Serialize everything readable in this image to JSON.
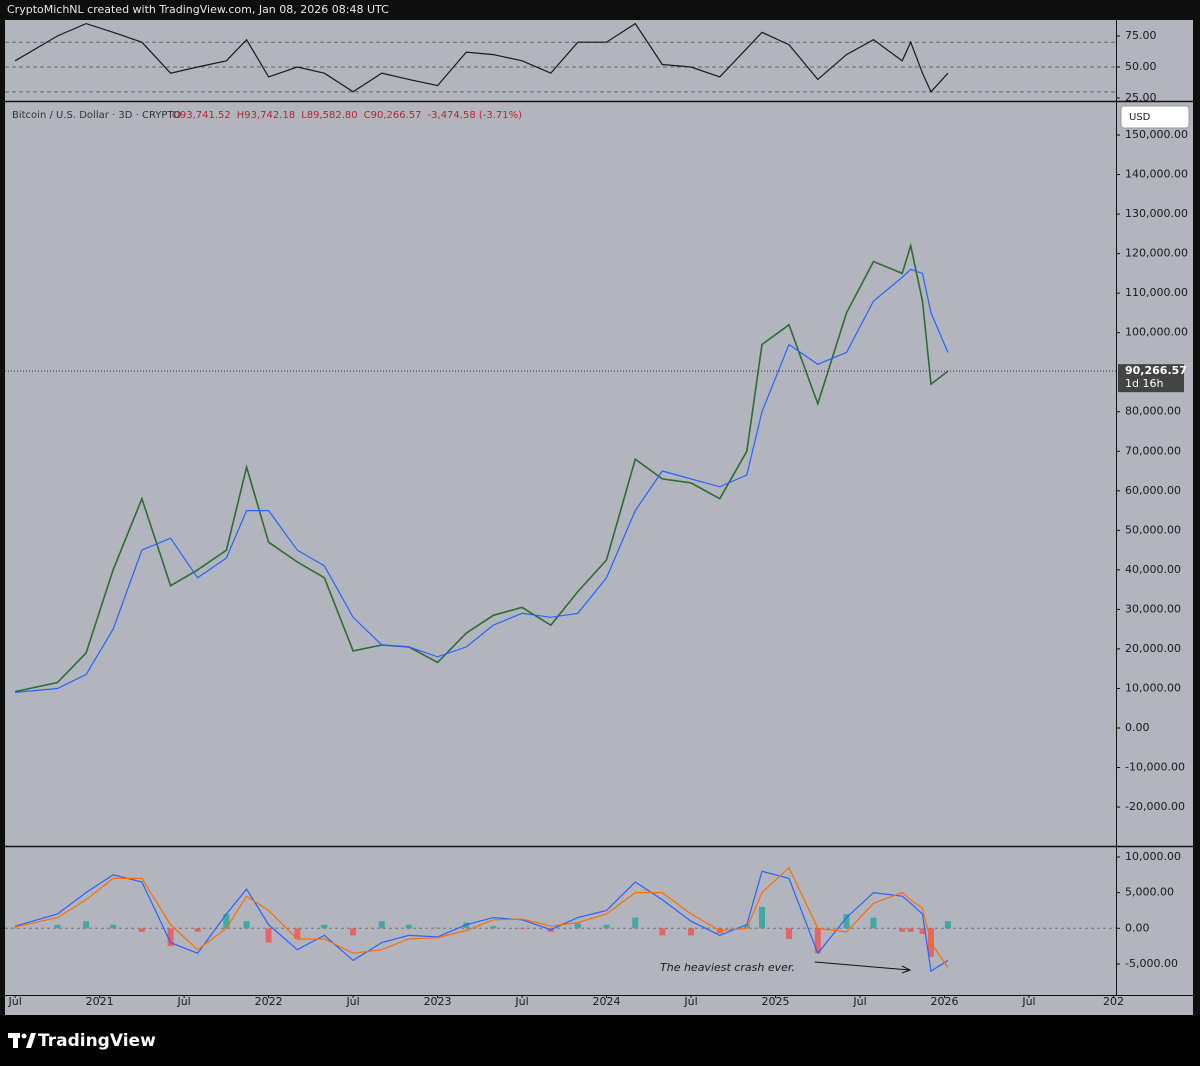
{
  "header": {
    "credit": "CryptoMichNL created with TradingView.com, Jan 08, 2026 08:48 UTC"
  },
  "footer": {
    "brand": "TradingView"
  },
  "chart_data": [
    {
      "type": "line",
      "x": [
        2020.5,
        2020.75,
        2020.92,
        2021.08,
        2021.25,
        2021.42,
        2021.58,
        2021.75,
        2021.87,
        2022.0,
        2022.17,
        2022.33,
        2022.5,
        2022.67,
        2022.83,
        2023.0,
        2023.17,
        2023.33,
        2023.5,
        2023.67,
        2023.83,
        2024.0,
        2024.17,
        2024.33,
        2024.5,
        2024.67,
        2024.83,
        2024.92,
        2025.08,
        2025.25,
        2025.42,
        2025.58,
        2025.75,
        2025.8,
        2025.87,
        2025.92,
        2026.02
      ],
      "xlim": [
        2020.44,
        2027.015
      ],
      "ylim": [
        23.4,
        87.9
      ],
      "yticks": [
        {
          "value": 75,
          "label": "75.00"
        },
        {
          "value": 50,
          "label": "50.00"
        },
        {
          "value": 25,
          "label": "25.00"
        }
      ],
      "hlines": [
        70,
        50,
        30
      ],
      "series": [
        {
          "color": "#1a1a1a",
          "values": [
            55,
            75,
            85,
            78,
            70,
            45,
            50,
            55,
            72,
            42,
            50,
            45,
            30,
            45,
            40,
            35,
            62,
            60,
            55,
            45,
            70,
            70,
            85,
            52,
            50,
            42,
            65,
            78,
            68,
            40,
            60,
            72,
            55,
            70,
            45,
            30,
            45
          ]
        }
      ]
    },
    {
      "type": "line",
      "title": "Bitcoin / U.S. Dollar · 3D · CRYPTO",
      "ohlc": [
        "O93,741.52",
        "H93,742.18",
        "L89,582.80",
        "C90,266.57",
        "-3,474.58 (-3.71%)"
      ],
      "currency": "USD",
      "last_price": {
        "value": 90266.57,
        "label": "90,266.57"
      },
      "countdown": "1d 16h",
      "x": [
        2020.5,
        2020.75,
        2020.92,
        2021.08,
        2021.25,
        2021.42,
        2021.58,
        2021.75,
        2021.87,
        2022.0,
        2022.17,
        2022.33,
        2022.5,
        2022.67,
        2022.83,
        2023.0,
        2023.17,
        2023.33,
        2023.5,
        2023.67,
        2023.83,
        2024.0,
        2024.17,
        2024.33,
        2024.5,
        2024.67,
        2024.83,
        2024.92,
        2025.08,
        2025.25,
        2025.42,
        2025.58,
        2025.75,
        2025.8,
        2025.87,
        2025.92,
        2026.02
      ],
      "xlim": [
        2020.44,
        2027.015
      ],
      "ylim": [
        -29600,
        158100
      ],
      "yticks": [
        {
          "value": 150000,
          "label": "150,000.00"
        },
        {
          "value": 140000,
          "label": "140,000.00"
        },
        {
          "value": 130000,
          "label": "130,000.00"
        },
        {
          "value": 120000,
          "label": "120,000.00"
        },
        {
          "value": 110000,
          "label": "110,000.00"
        },
        {
          "value": 100000,
          "label": "100,000.00"
        },
        {
          "value": 80000,
          "label": "80,000.00"
        },
        {
          "value": 70000,
          "label": "70,000.00"
        },
        {
          "value": 60000,
          "label": "60,000.00"
        },
        {
          "value": 50000,
          "label": "50,000.00"
        },
        {
          "value": 40000,
          "label": "40,000.00"
        },
        {
          "value": 30000,
          "label": "30,000.00"
        },
        {
          "value": 20000,
          "label": "20,000.00"
        },
        {
          "value": 10000,
          "label": "10,000.00"
        },
        {
          "value": 0,
          "label": "0.00"
        },
        {
          "value": -10000,
          "label": "-10,000.00"
        },
        {
          "value": -20000,
          "label": "-20,000.00"
        }
      ],
      "series": [
        {
          "color": "#2f6b34",
          "values": [
            9200,
            11500,
            19000,
            40000,
            58000,
            36000,
            40000,
            45000,
            66000,
            47000,
            42000,
            38000,
            19500,
            21000,
            20500,
            16600,
            24000,
            28500,
            30500,
            26000,
            34500,
            42500,
            68000,
            63000,
            62000,
            58000,
            70000,
            97000,
            102000,
            82000,
            105000,
            118000,
            115000,
            122000,
            108000,
            87000,
            90266.57
          ]
        },
        {
          "color": "#2962ff",
          "values": [
            9000,
            10000,
            13500,
            25000,
            45000,
            48000,
            38000,
            43000,
            55000,
            55000,
            45000,
            41000,
            28000,
            21000,
            20500,
            18000,
            20500,
            26000,
            29000,
            28000,
            29000,
            38000,
            55000,
            65000,
            63000,
            61000,
            64000,
            80000,
            97000,
            92000,
            95000,
            108000,
            114000,
            116000,
            115000,
            105000,
            95000
          ]
        }
      ]
    },
    {
      "type": "line",
      "annotation": "The heaviest crash ever.",
      "x": [
        2020.5,
        2020.75,
        2020.92,
        2021.08,
        2021.25,
        2021.42,
        2021.58,
        2021.75,
        2021.87,
        2022.0,
        2022.17,
        2022.33,
        2022.5,
        2022.67,
        2022.83,
        2023.0,
        2023.17,
        2023.33,
        2023.5,
        2023.67,
        2023.83,
        2024.0,
        2024.17,
        2024.33,
        2024.5,
        2024.67,
        2024.83,
        2024.92,
        2025.08,
        2025.25,
        2025.42,
        2025.58,
        2025.75,
        2025.8,
        2025.87,
        2025.92,
        2026.02
      ],
      "xlim": [
        2020.44,
        2027.015
      ],
      "ylim": [
        -9350,
        11260
      ],
      "yticks": [
        {
          "value": 10000,
          "label": "10,000.00"
        },
        {
          "value": 5000,
          "label": "5,000.00"
        },
        {
          "value": 0,
          "label": "0.00"
        },
        {
          "value": -5000,
          "label": "-5,000.00"
        }
      ],
      "xticks": [
        {
          "value": 2020.5,
          "label": "Jul"
        },
        2021,
        {
          "value": 2021.5,
          "label": "Jul"
        },
        2022,
        {
          "value": 2022.5,
          "label": "Jul"
        },
        2023,
        {
          "value": 2023.5,
          "label": "Jul"
        },
        2024,
        {
          "value": 2024.5,
          "label": "Jul"
        },
        2025,
        {
          "value": 2025.5,
          "label": "Jul"
        },
        2026,
        {
          "value": 2026.5,
          "label": "Jul"
        },
        {
          "value": 2027,
          "label": "202"
        }
      ],
      "series": [
        {
          "type": "bar",
          "colors": {
            "up": "#26a69a",
            "down": "#ef5350"
          },
          "values": [
            100,
            500,
            1000,
            500,
            -500,
            -2500,
            -500,
            2000,
            1000,
            -2000,
            -1500,
            500,
            -1000,
            1000,
            500,
            100,
            800,
            300,
            -100,
            -500,
            700,
            500,
            1500,
            -1000,
            -1000,
            -700,
            500,
            3000,
            -1500,
            -3500,
            2000,
            1500,
            -500,
            -500,
            -800,
            -4000,
            1000
          ]
        },
        {
          "color": "#2962ff",
          "values": [
            300,
            2000,
            5000,
            7500,
            6500,
            -2000,
            -3500,
            2000,
            5500,
            500,
            -3000,
            -1000,
            -4500,
            -2000,
            -1000,
            -1200,
            500,
            1500,
            1200,
            -200,
            1500,
            2500,
            6500,
            4000,
            1000,
            -1000,
            500,
            8000,
            7000,
            -3500,
            1500,
            5000,
            4500,
            3500,
            2000,
            -6000,
            -4500
          ]
        },
        {
          "color": "#ff6d00",
          "values": [
            200,
            1500,
            4000,
            7000,
            7000,
            500,
            -3000,
            0,
            4500,
            2500,
            -1500,
            -1500,
            -3500,
            -3000,
            -1500,
            -1300,
            -300,
            1200,
            1300,
            300,
            800,
            2000,
            5000,
            5000,
            2000,
            -300,
            0,
            5000,
            8500,
            0,
            -500,
            3500,
            5000,
            4000,
            2800,
            -2000,
            -5500
          ]
        }
      ]
    }
  ]
}
